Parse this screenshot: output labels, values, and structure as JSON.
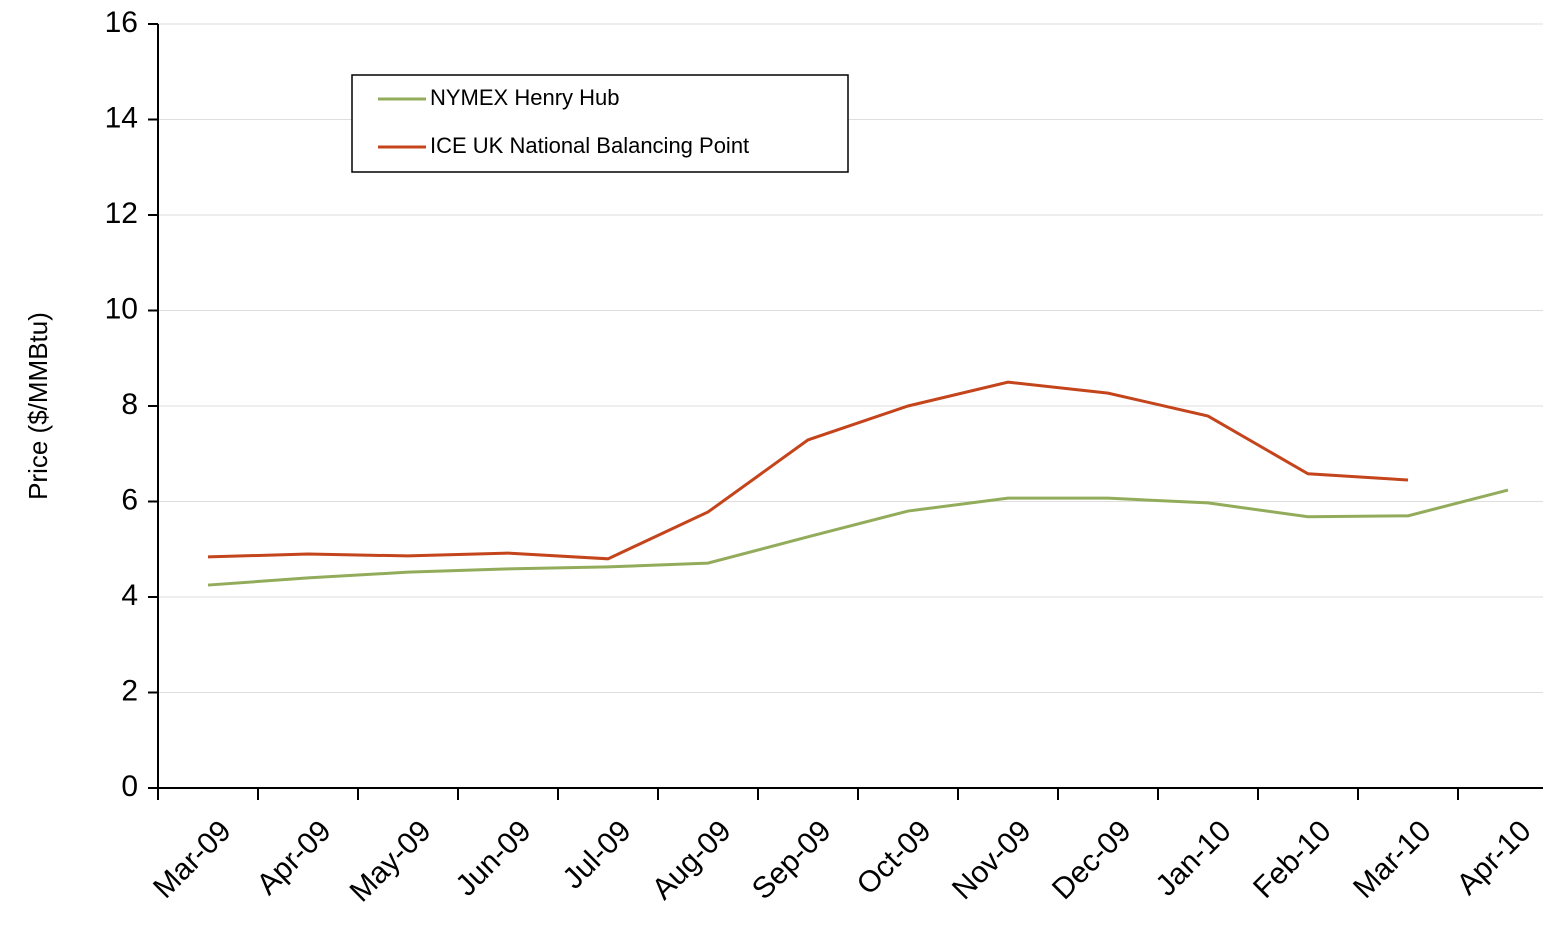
{
  "chart_data": {
    "type": "line",
    "y_label": "Price ($/MMBtu)",
    "categories": [
      "Mar-09",
      "Apr-09",
      "May-09",
      "Jun-09",
      "Jul-09",
      "Aug-09",
      "Sep-09",
      "Oct-09",
      "Nov-09",
      "Dec-09",
      "Jan-10",
      "Feb-10",
      "Mar-10",
      "Apr-10"
    ],
    "series": [
      {
        "name": "NYMEX Henry Hub",
        "color": "#93ac5c",
        "values": [
          4.25,
          4.4,
          4.52,
          4.59,
          4.63,
          4.71,
          5.26,
          5.8,
          6.07,
          6.07,
          5.97,
          5.68,
          5.7,
          6.24
        ]
      },
      {
        "name": "ICE UK National Balancing Point",
        "color": "#c4441c",
        "values": [
          4.84,
          4.9,
          4.86,
          4.92,
          4.8,
          5.78,
          7.29,
          8.0,
          8.5,
          8.27,
          7.79,
          6.58,
          6.45,
          null
        ]
      }
    ],
    "ylim": [
      0,
      16
    ],
    "yticks": [
      0,
      2,
      4,
      6,
      8,
      10,
      12,
      14,
      16
    ],
    "grid": true,
    "legend": "top-left"
  }
}
